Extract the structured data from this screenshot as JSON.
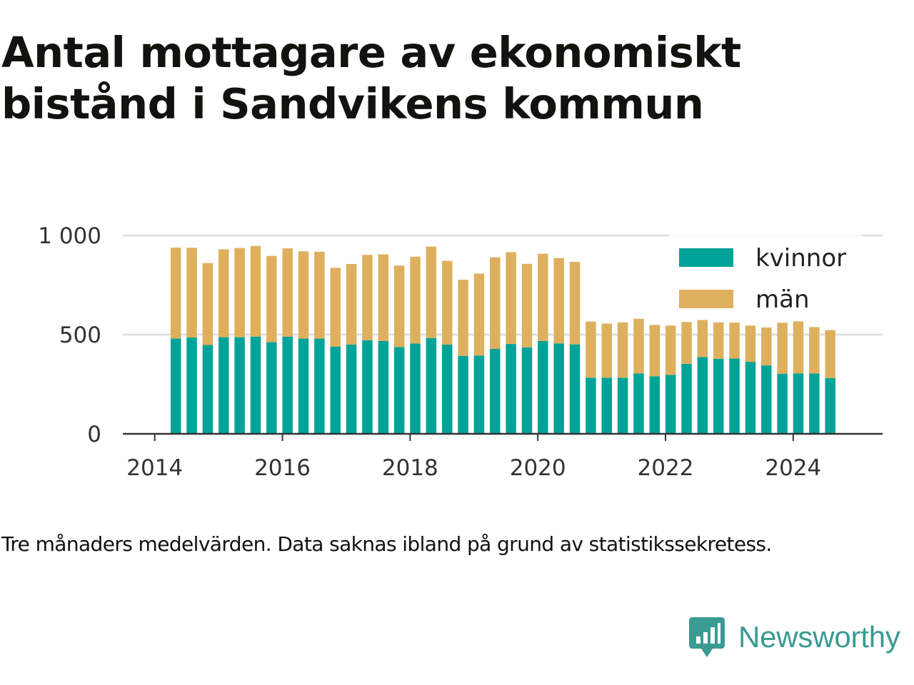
{
  "title": "Antal mottagare av ekonomiskt bistånd i Sandvikens kommun",
  "caption": "Tre månaders medelvärden. Data saknas ibland på grund av statistikssekretess.",
  "brand": {
    "name": "Newsworthy",
    "logo_icon": "bar-chart-speech-bubble-icon"
  },
  "colors": {
    "kvinnor": "#00a398",
    "man": "#deb05e",
    "grid": "#dddddd",
    "axis": "#333333",
    "brand": "#3a9b92"
  },
  "chart_data": {
    "type": "bar",
    "stacked": true,
    "x_unit": "year",
    "xlim": [
      2013.5,
      2025.4
    ],
    "ylim": [
      0,
      1000
    ],
    "x_ticks": [
      2014,
      2016,
      2018,
      2020,
      2022,
      2024
    ],
    "x_tick_labels": [
      "2014",
      "2016",
      "2018",
      "2020",
      "2022",
      "2024"
    ],
    "y_ticks": [
      0,
      500,
      1000
    ],
    "y_tick_labels": [
      "0",
      "500",
      "1 000"
    ],
    "grid": true,
    "legend_position": "top-right",
    "x": [
      2014.33,
      2014.58,
      2014.83,
      2015.08,
      2015.33,
      2015.58,
      2015.83,
      2016.08,
      2016.33,
      2016.58,
      2016.83,
      2017.08,
      2017.33,
      2017.58,
      2017.83,
      2018.08,
      2018.33,
      2018.58,
      2018.83,
      2019.08,
      2019.33,
      2019.58,
      2019.83,
      2020.08,
      2020.33,
      2020.58,
      2020.83,
      2021.08,
      2021.33,
      2021.58,
      2021.83,
      2022.08,
      2022.33,
      2022.58,
      2022.83,
      2023.08,
      2023.33,
      2023.58,
      2023.83,
      2024.08,
      2024.33,
      2024.58
    ],
    "series": [
      {
        "name": "kvinnor",
        "values": [
          481,
          486,
          448,
          487,
          487,
          490,
          462,
          490,
          480,
          480,
          440,
          450,
          472,
          468,
          437,
          455,
          483,
          450,
          393,
          395,
          428,
          453,
          436,
          468,
          456,
          451,
          283,
          283,
          283,
          304,
          290,
          297,
          353,
          387,
          378,
          380,
          363,
          345,
          303,
          305,
          304,
          281
        ]
      },
      {
        "name": "män",
        "values": [
          458,
          452,
          413,
          443,
          450,
          457,
          435,
          445,
          440,
          438,
          397,
          406,
          430,
          437,
          411,
          438,
          461,
          422,
          384,
          413,
          462,
          463,
          421,
          440,
          430,
          416,
          283,
          273,
          279,
          276,
          259,
          249,
          211,
          187,
          184,
          181,
          183,
          191,
          257,
          262,
          234,
          242
        ]
      }
    ]
  }
}
